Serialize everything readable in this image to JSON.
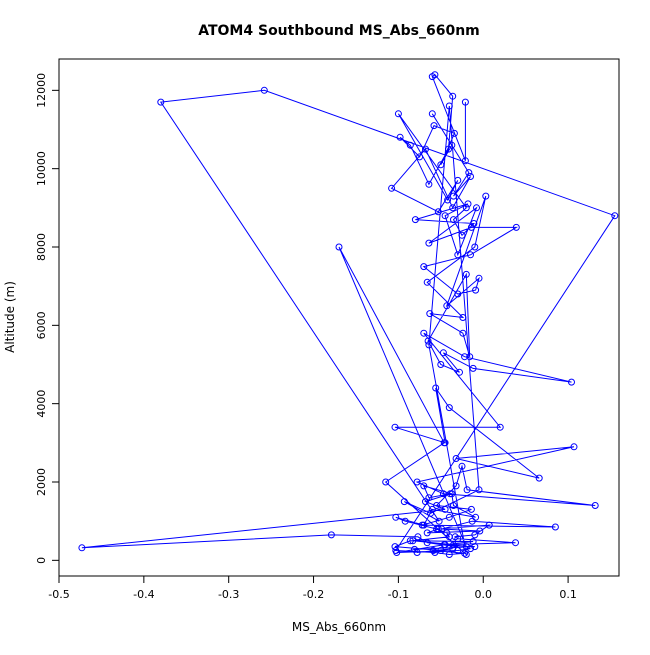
{
  "chart_data": {
    "type": "line",
    "title": "ATOM4 Southbound MS_Abs_660nm",
    "xlabel": "MS_Abs_660nm",
    "ylabel": "Altitude (m)",
    "xlim": [
      -0.5,
      0.16
    ],
    "ylim": [
      -400,
      12800
    ],
    "xticks": [
      -0.5,
      -0.4,
      -0.3,
      -0.2,
      -0.1,
      0.0,
      0.1
    ],
    "xtick_labels": [
      "-0.5",
      "-0.4",
      "-0.3",
      "-0.2",
      "-0.1",
      "0.0",
      "0.1"
    ],
    "yticks": [
      0,
      2000,
      4000,
      6000,
      8000,
      10000,
      12000
    ],
    "ytick_labels": [
      "0",
      "2000",
      "4000",
      "6000",
      "8000",
      "10000",
      "12000"
    ],
    "grid": false,
    "legend": "none",
    "series_color": "#0000ff",
    "series": [
      {
        "x": [
          -0.021,
          -0.021,
          -0.06,
          -0.057,
          -0.036,
          -0.041,
          -0.064,
          -0.086,
          -0.098,
          -0.075,
          -0.058,
          -0.034,
          -0.05,
          -0.037,
          -0.06,
          -0.017,
          -0.035,
          -0.015,
          -0.036,
          -0.068,
          -0.108,
          -0.053,
          -0.03,
          -0.042,
          -0.1,
          -0.02,
          -0.035,
          -0.025,
          -0.011,
          -0.08,
          -0.018,
          -0.045,
          -0.03,
          -0.008,
          -0.064,
          -0.014,
          0.039,
          -0.015,
          -0.07,
          -0.03,
          -0.009,
          -0.005,
          -0.043,
          0.003,
          -0.01,
          -0.066,
          -0.024,
          -0.063,
          -0.024,
          -0.016,
          -0.02,
          -0.065,
          -0.05,
          -0.028,
          -0.047,
          -0.012,
          0.104,
          -0.022,
          -0.07,
          0.02,
          -0.104,
          -0.045,
          -0.056,
          -0.04,
          0.066,
          -0.032,
          0.107,
          -0.078,
          -0.047,
          0.132,
          -0.019,
          -0.025,
          -0.032,
          -0.055,
          -0.014,
          -0.04,
          -0.072,
          0.085,
          -0.013,
          -0.049,
          -0.004,
          -0.066,
          -0.053,
          0.007,
          -0.01,
          -0.033,
          -0.03,
          0.038,
          -0.045,
          -0.012,
          -0.086,
          -0.104,
          -0.05,
          -0.036,
          -0.078,
          -0.081,
          -0.01,
          -0.046,
          -0.102,
          -0.03,
          -0.015,
          -0.066,
          -0.077,
          -0.179,
          -0.473,
          -0.045,
          -0.068,
          -0.039,
          -0.064,
          -0.07,
          -0.037,
          -0.035,
          -0.009,
          -0.06,
          -0.07,
          -0.103,
          -0.092,
          -0.055,
          -0.043,
          -0.04,
          -0.083,
          -0.035,
          -0.02,
          -0.17,
          -0.046,
          -0.115,
          -0.02,
          -0.064,
          -0.04,
          -0.005,
          -0.062,
          -0.093,
          -0.052,
          -0.38,
          -0.258,
          0.155,
          -0.103,
          -0.057,
          -0.04,
          -0.022,
          -0.059
        ],
        "y": [
          11700,
          10200,
          12350,
          12400,
          11850,
          10500,
          9600,
          10600,
          10800,
          10300,
          11100,
          10900,
          10100,
          10600,
          11400,
          9900,
          9300,
          9800,
          9000,
          10500,
          9500,
          8900,
          9700,
          9200,
          11400,
          9000,
          8700,
          8300,
          8600,
          8700,
          9100,
          8800,
          7800,
          9000,
          8100,
          8500,
          8500,
          7800,
          7500,
          6800,
          6900,
          7200,
          6500,
          9300,
          8000,
          7100,
          6200,
          6300,
          5800,
          5200,
          7300,
          5600,
          5000,
          4800,
          5300,
          4900,
          4550,
          5200,
          5800,
          3400,
          3400,
          3000,
          4400,
          3900,
          2100,
          2600,
          2900,
          2000,
          1700,
          1400,
          1800,
          2400,
          1900,
          1400,
          1300,
          1100,
          900,
          850,
          1000,
          800,
          750,
          700,
          800,
          900,
          650,
          600,
          550,
          450,
          400,
          480,
          500,
          350,
          250,
          300,
          200,
          280,
          350,
          400,
          200,
          250,
          300,
          450,
          600,
          650,
          320,
          1300,
          1500,
          1700,
          1600,
          1900,
          1700,
          1400,
          1100,
          1300,
          900,
          1100,
          1000,
          800,
          700,
          600,
          500,
          400,
          350,
          8000,
          3000,
          2000,
          150,
          5500,
          11600,
          1800,
          1200,
          1500,
          1000,
          11700,
          12000,
          8800,
          250,
          200,
          150,
          180,
          250
        ]
      }
    ]
  }
}
